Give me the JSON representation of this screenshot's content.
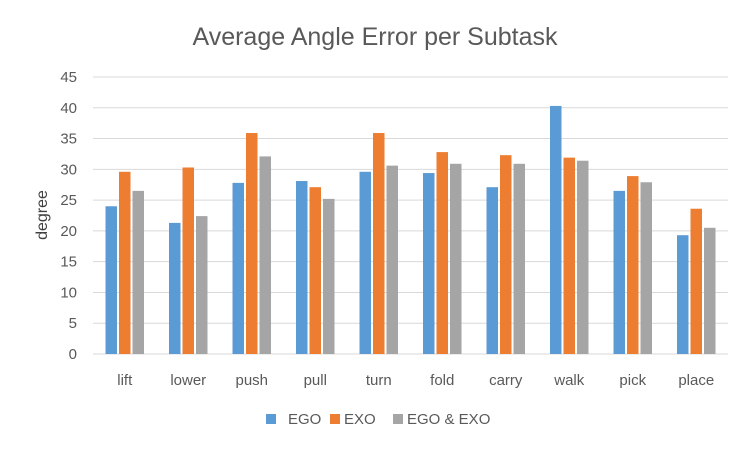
{
  "chart_data": {
    "type": "bar",
    "title": "Average Angle Error per Subtask",
    "xlabel": "",
    "ylabel": "degree",
    "ylim": [
      0,
      45
    ],
    "yticks": [
      0,
      5,
      10,
      15,
      20,
      25,
      30,
      35,
      40,
      45
    ],
    "grid": true,
    "legend_position": "bottom",
    "categories": [
      "lift",
      "lower",
      "push",
      "pull",
      "turn",
      "fold",
      "carry",
      "walk",
      "pick",
      "place"
    ],
    "series": [
      {
        "name": "EGO",
        "color": "#5b9bd5",
        "values": [
          24.0,
          21.3,
          27.8,
          28.1,
          29.6,
          29.4,
          27.1,
          40.3,
          26.5,
          19.3
        ]
      },
      {
        "name": "EXO",
        "color": "#ed7d31",
        "values": [
          29.6,
          30.3,
          35.9,
          27.1,
          35.9,
          32.8,
          32.3,
          31.9,
          28.9,
          23.6
        ]
      },
      {
        "name": "EGO & EXO",
        "color": "#a5a5a5",
        "values": [
          26.5,
          22.4,
          32.1,
          25.2,
          30.6,
          30.9,
          30.9,
          31.4,
          27.9,
          20.5
        ]
      }
    ]
  }
}
